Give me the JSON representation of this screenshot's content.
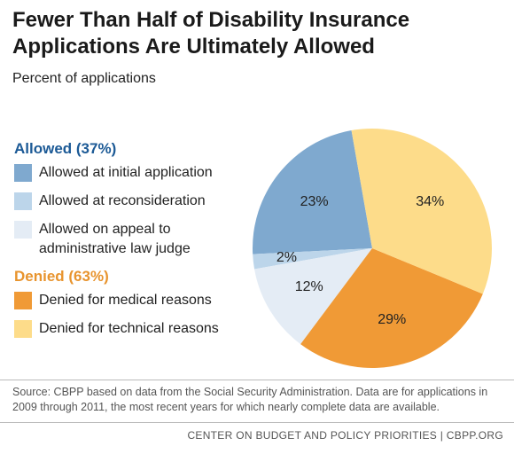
{
  "chart_data": {
    "type": "pie",
    "title": "Fewer Than Half of Disability Insurance Applications Are Ultimately Allowed",
    "subtitle": "Percent of applications",
    "legend_groups": [
      {
        "label": "Allowed (37%)",
        "color": "#1c5a96",
        "members": [
          0,
          1,
          2
        ]
      },
      {
        "label": "Denied (63%)",
        "color": "#e8942e",
        "members": [
          3,
          4
        ]
      }
    ],
    "categories": [
      "Allowed at initial application",
      "Allowed at reconsideration",
      "Allowed on appeal to administrative law judge",
      "Denied for medical reasons",
      "Denied for technical reasons"
    ],
    "values": [
      23,
      2,
      12,
      29,
      34
    ],
    "value_labels": [
      "23%",
      "2%",
      "12%",
      "29%",
      "34%"
    ],
    "colors": [
      "#7fa9cf",
      "#bcd5ea",
      "#e4ecf5",
      "#f09a36",
      "#fddc8a"
    ],
    "source": "Source: CBPP based on data from the Social Security Administration. Data are for applications in 2009 through 2011, the most recent years for which nearly complete data are available.",
    "footer": "CENTER ON BUDGET AND POLICY PRIORITIES | CBPP.ORG"
  }
}
